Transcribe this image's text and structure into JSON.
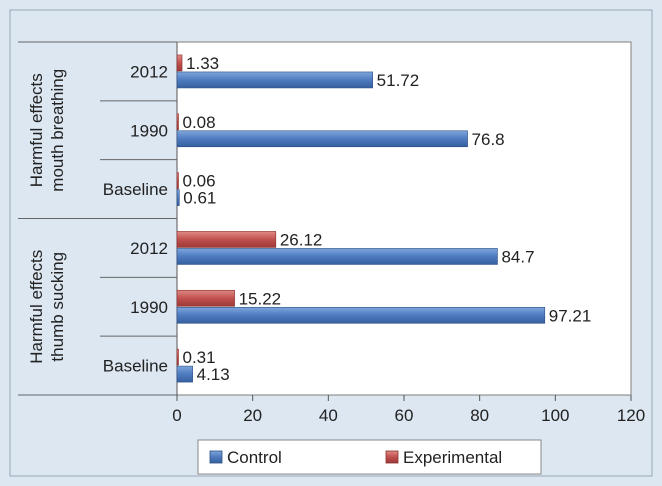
{
  "chart_data": {
    "type": "bar",
    "orientation": "horizontal",
    "xlim": [
      0,
      120
    ],
    "x_ticks": [
      "0",
      "20",
      "40",
      "60",
      "80",
      "100",
      "120"
    ],
    "grid": false,
    "legend_position": "bottom",
    "groups": [
      {
        "label_lines": [
          "Harmful effects",
          "mouth breathing"
        ],
        "categories": [
          {
            "label": "2012",
            "control": 51.72,
            "experimental": 1.33,
            "control_label": "51.72",
            "experimental_label": "1.33"
          },
          {
            "label": "1990",
            "control": 76.8,
            "experimental": 0.08,
            "control_label": "76.8",
            "experimental_label": "0.08"
          },
          {
            "label": "Baseline",
            "control": 0.61,
            "experimental": 0.06,
            "control_label": "0.61",
            "experimental_label": "0.06"
          }
        ]
      },
      {
        "label_lines": [
          "Harmful effects",
          "thumb sucking"
        ],
        "categories": [
          {
            "label": "2012",
            "control": 84.7,
            "experimental": 26.12,
            "control_label": "84.7",
            "experimental_label": "26.12"
          },
          {
            "label": "1990",
            "control": 97.21,
            "experimental": 15.22,
            "control_label": "97.21",
            "experimental_label": "15.22"
          },
          {
            "label": "Baseline",
            "control": 4.13,
            "experimental": 0.31,
            "control_label": "4.13",
            "experimental_label": "0.31"
          }
        ]
      }
    ],
    "series": [
      {
        "key": "control",
        "name": "Control",
        "color": "#4f7bbf"
      },
      {
        "key": "experimental",
        "name": "Experimental",
        "color": "#c0504d"
      }
    ]
  }
}
